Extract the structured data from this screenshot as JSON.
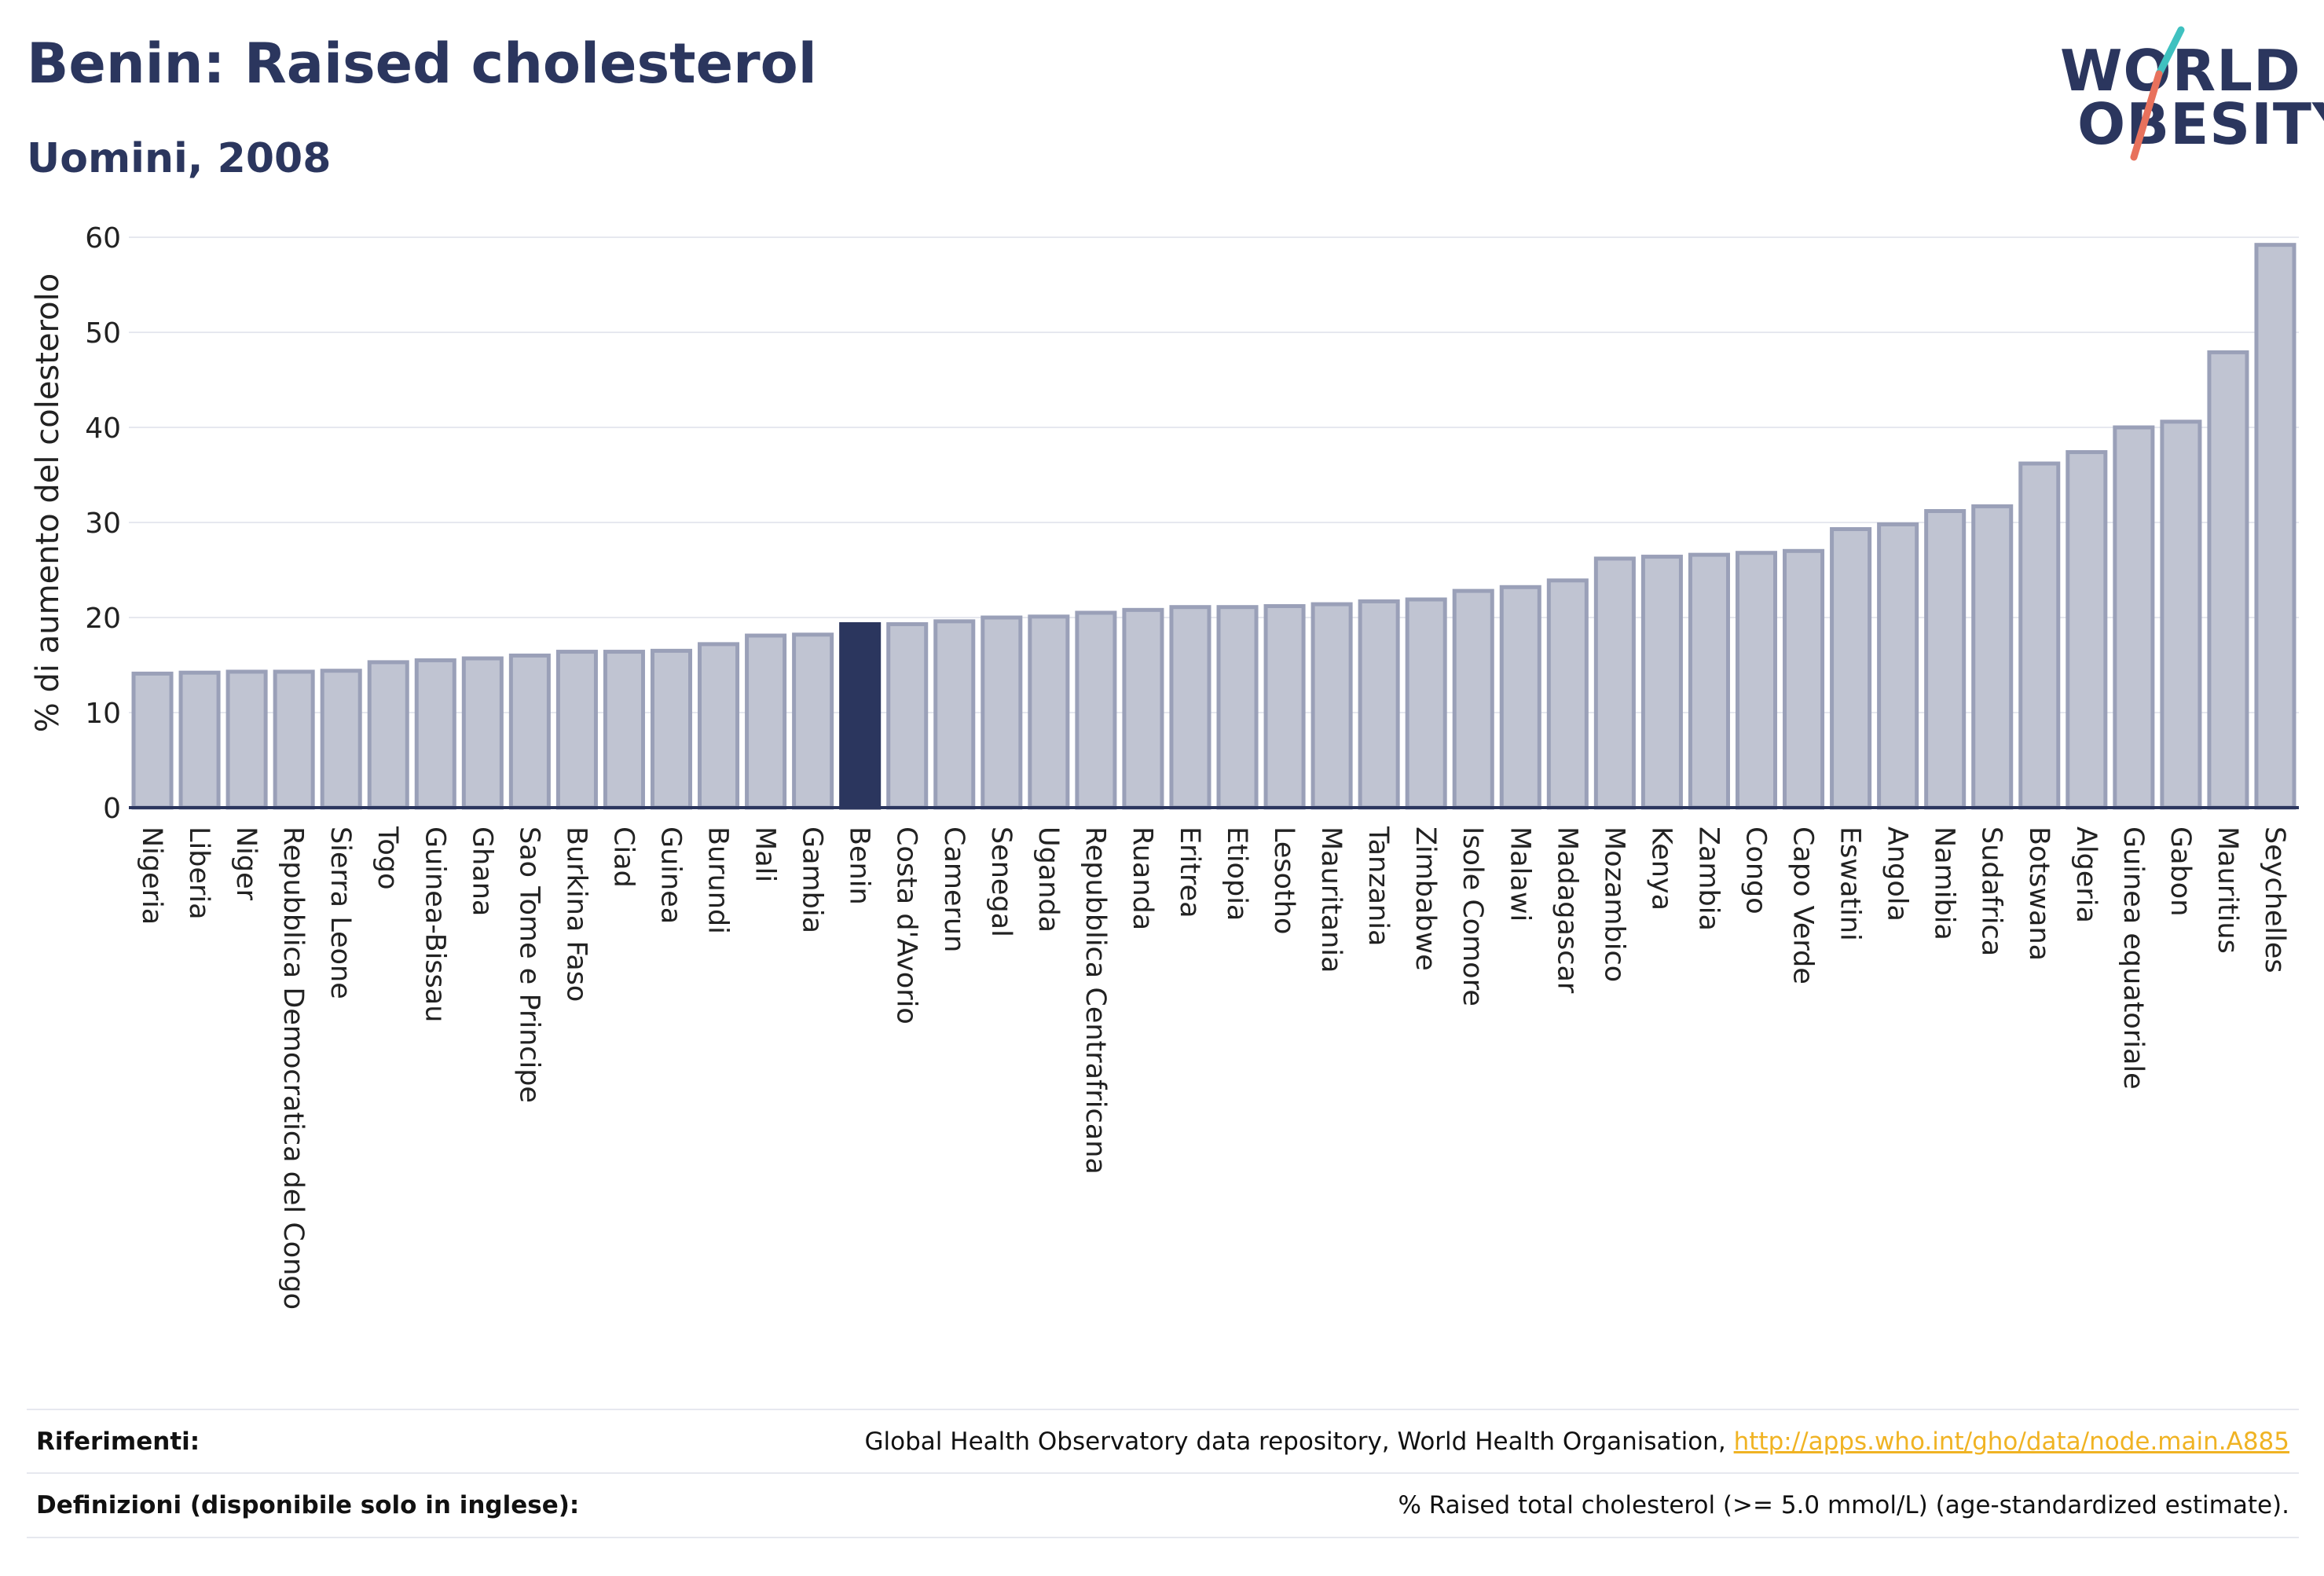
{
  "header": {
    "title": "Benin: Raised cholesterol",
    "subtitle": "Uomini, 2008"
  },
  "logo": {
    "line1": "WORLD",
    "line2": "OBESITY",
    "accent_colors": [
      "#3fc1c0",
      "#e8715c"
    ]
  },
  "colors": {
    "bar": "#c0c4d2",
    "bar_border": "#9aa0b8",
    "highlight": "#2b365e",
    "grid": "#e6e8ef",
    "axis": "#2b365e",
    "link": "#f0b323"
  },
  "chart_data": {
    "type": "bar",
    "ylabel": "% di aumento del colesterolo",
    "ylim": [
      0,
      60
    ],
    "yticks": [
      0,
      10,
      20,
      30,
      40,
      50,
      60
    ],
    "grid": true,
    "highlight": "Benin",
    "categories": [
      "Nigeria",
      "Liberia",
      "Niger",
      "Repubblica Democratica del Congo",
      "Sierra Leone",
      "Togo",
      "Guinea-Bissau",
      "Ghana",
      "Sao Tome e Principe",
      "Burkina Faso",
      "Ciad",
      "Guinea",
      "Burundi",
      "Mali",
      "Gambia",
      "Benin",
      "Costa d'Avorio",
      "Camerun",
      "Senegal",
      "Uganda",
      "Repubblica Centrafricana",
      "Ruanda",
      "Eritrea",
      "Etiopia",
      "Lesotho",
      "Mauritania",
      "Tanzania",
      "Zimbabwe",
      "Isole Comore",
      "Malawi",
      "Madagascar",
      "Mozambico",
      "Kenya",
      "Zambia",
      "Congo",
      "Capo Verde",
      "Eswatini",
      "Angola",
      "Namibia",
      "Sudafrica",
      "Botswana",
      "Algeria",
      "Guinea equatoriale",
      "Gabon",
      "Mauritius",
      "Seychelles"
    ],
    "values": [
      14.1,
      14.2,
      14.3,
      14.3,
      14.4,
      15.3,
      15.5,
      15.7,
      16.0,
      16.4,
      16.4,
      16.5,
      17.2,
      18.1,
      18.2,
      19.3,
      19.3,
      19.6,
      20.0,
      20.1,
      20.5,
      20.8,
      21.1,
      21.1,
      21.2,
      21.4,
      21.7,
      21.9,
      22.8,
      23.2,
      23.9,
      26.2,
      26.4,
      26.6,
      26.8,
      27.0,
      29.3,
      29.8,
      31.2,
      31.7,
      36.2,
      37.4,
      40.0,
      40.6,
      47.9,
      59.2
    ]
  },
  "footer": {
    "references_label": "Riferimenti:",
    "references_text": "Global Health Observatory data repository, World Health Organisation,",
    "references_link": "http://apps.who.int/gho/data/node.main.A885",
    "definitions_label": "Definizioni (disponibile solo in inglese):",
    "definitions_text": "% Raised total cholesterol (>= 5.0 mmol/L) (age-standardized estimate)."
  }
}
